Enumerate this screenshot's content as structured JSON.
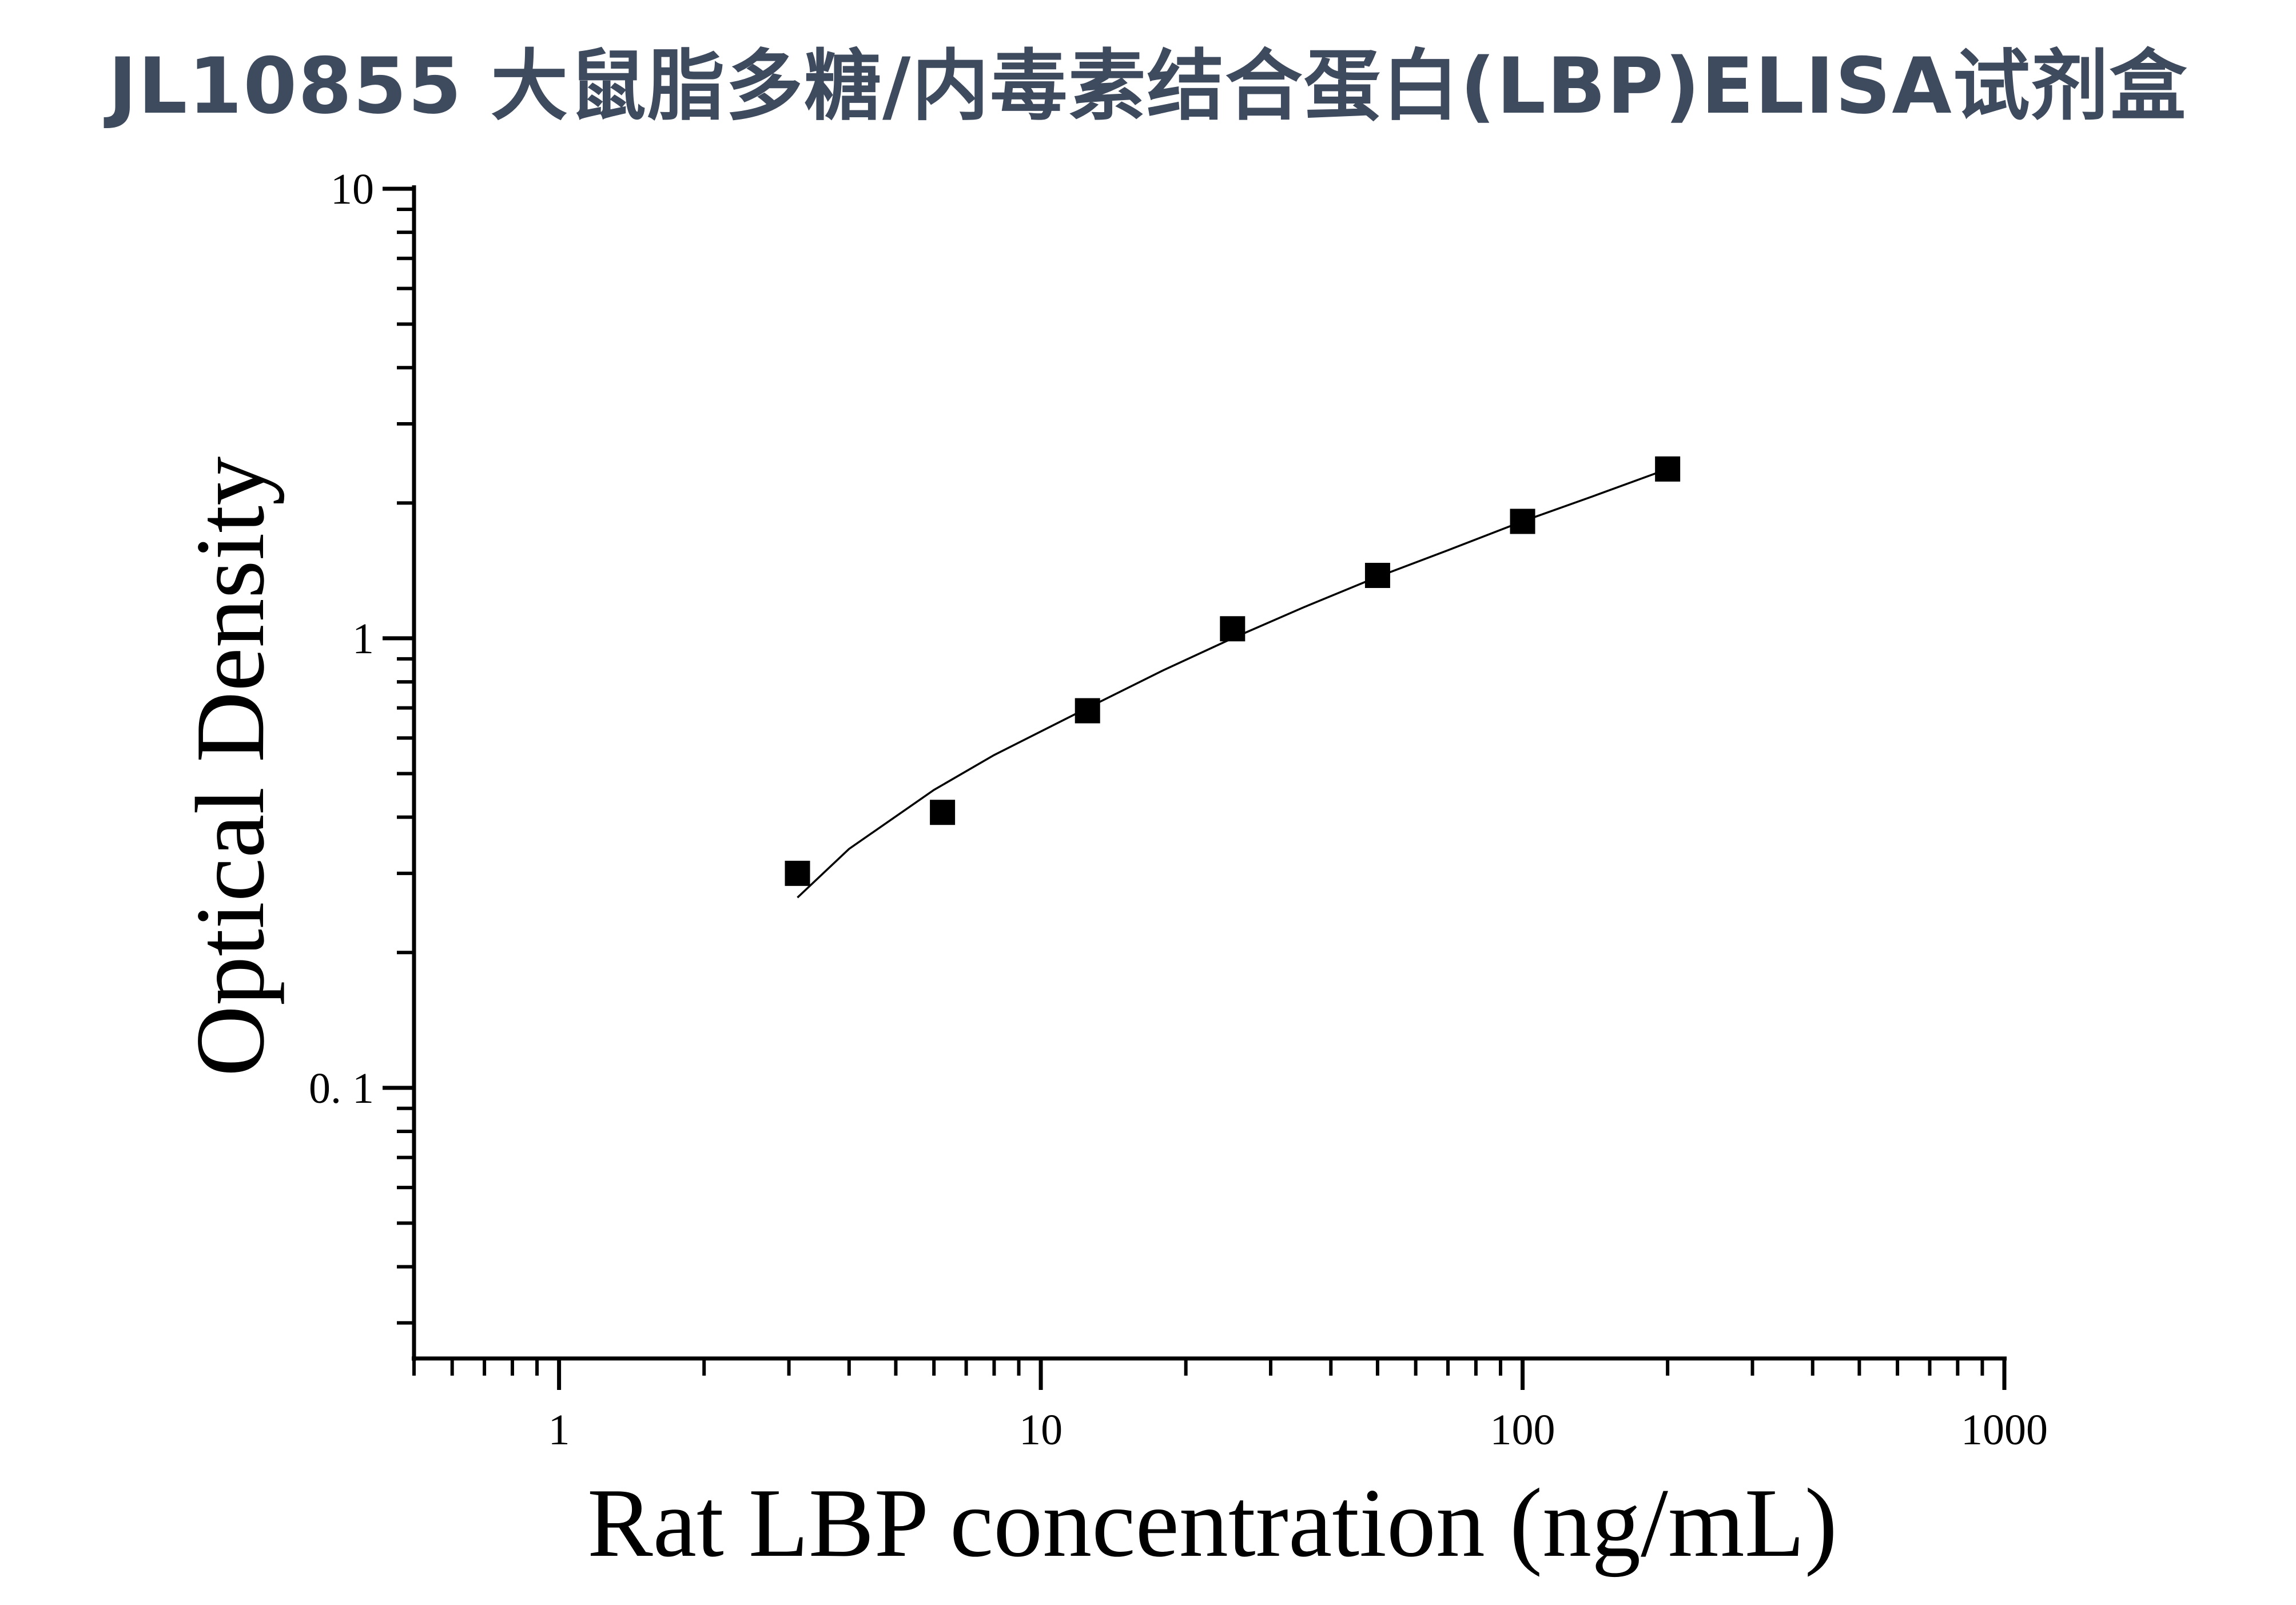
{
  "header": {
    "title": "JL10855 大鼠脂多糖/内毒素结合蛋白(LBP)ELISA试剂盒"
  },
  "chart_data": {
    "type": "scatter",
    "title": "",
    "xlabel": "Rat LBP concentration (ng/mL)",
    "ylabel": "Optical Density",
    "x_scale": "log",
    "y_scale": "log",
    "xlim": [
      0.5,
      1000
    ],
    "ylim": [
      0.025,
      10
    ],
    "x_ticks": [
      {
        "value": 1,
        "label": "1"
      },
      {
        "value": 10,
        "label": "10"
      },
      {
        "value": 100,
        "label": "100"
      },
      {
        "value": 1000,
        "label": "1000"
      }
    ],
    "y_ticks": [
      {
        "value": 0.1,
        "label": "0. 1"
      },
      {
        "value": 1,
        "label": "1"
      },
      {
        "value": 10,
        "label": "10"
      }
    ],
    "grid": false,
    "legend": "none",
    "marker": "square",
    "marker_color": "#000000",
    "line_color": "#000000",
    "series": [
      {
        "x": [
          3.125,
          6.25,
          12.5,
          25,
          50,
          100,
          200
        ],
        "y": [
          0.3,
          0.41,
          0.69,
          1.05,
          1.38,
          1.82,
          2.38
        ]
      }
    ],
    "fit_curve": {
      "x": [
        3.125,
        4,
        6,
        8,
        12.5,
        18,
        25,
        35,
        50,
        70,
        100,
        140,
        200
      ],
      "y": [
        0.265,
        0.34,
        0.46,
        0.55,
        0.7,
        0.85,
        1.0,
        1.17,
        1.37,
        1.57,
        1.82,
        2.07,
        2.38
      ]
    }
  }
}
